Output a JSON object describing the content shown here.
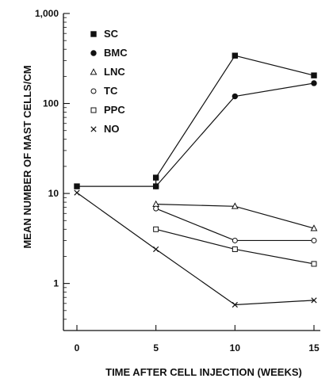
{
  "chart_data": {
    "type": "line",
    "x_label": "TIME AFTER CELL INJECTION (WEEKS)",
    "y_label": "MEAN NUMBER OF MAST CELLS/CM",
    "x_ticks": [
      0,
      5,
      10,
      15
    ],
    "x_range": [
      0,
      15
    ],
    "y_scale": "log",
    "y_ticks": [
      1,
      10,
      100,
      1000
    ],
    "y_tick_labels": [
      "1",
      "10",
      "100",
      "1,000"
    ],
    "y_range": [
      0.3,
      1000
    ],
    "legend": {
      "placement": "top-left"
    },
    "series": [
      {
        "name": "SC",
        "marker": "filled-square",
        "points": [
          {
            "x": 0,
            "y": 12
          },
          {
            "x": 5,
            "y": 12
          },
          {
            "x": 5,
            "y": 15
          },
          {
            "x": 10,
            "y": 340
          },
          {
            "x": 15,
            "y": 205
          }
        ]
      },
      {
        "name": "BMC",
        "marker": "filled-circle",
        "points": [
          {
            "x": 5,
            "y": 12
          },
          {
            "x": 10,
            "y": 120
          },
          {
            "x": 15,
            "y": 168
          }
        ]
      },
      {
        "name": "LNC",
        "marker": "open-triangle",
        "points": [
          {
            "x": 5,
            "y": 7.6
          },
          {
            "x": 10,
            "y": 7.2
          },
          {
            "x": 15,
            "y": 4.1
          }
        ]
      },
      {
        "name": "TC",
        "marker": "open-circle",
        "points": [
          {
            "x": 5,
            "y": 6.8
          },
          {
            "x": 10,
            "y": 3.0
          },
          {
            "x": 15,
            "y": 3.0
          }
        ]
      },
      {
        "name": "PPC",
        "marker": "open-square",
        "points": [
          {
            "x": 5,
            "y": 4.0
          },
          {
            "x": 10,
            "y": 2.4
          },
          {
            "x": 15,
            "y": 1.65
          }
        ]
      },
      {
        "name": "NO",
        "marker": "x",
        "points": [
          {
            "x": 0,
            "y": 10.2
          },
          {
            "x": 5,
            "y": 2.4
          },
          {
            "x": 10,
            "y": 0.58
          },
          {
            "x": 15,
            "y": 0.65
          }
        ]
      }
    ]
  }
}
